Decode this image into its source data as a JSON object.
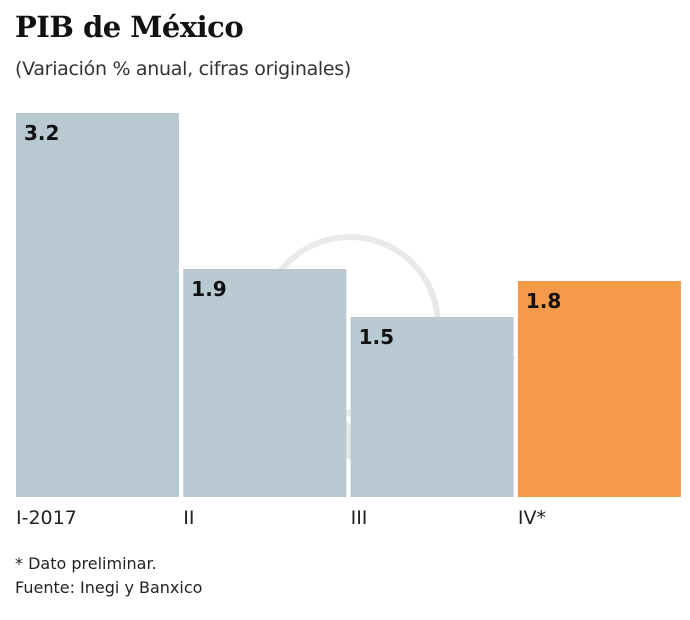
{
  "chart_data": {
    "type": "bar",
    "title": "PIB de México",
    "subtitle": "(Variación % anual, cifras originales)",
    "categories": [
      "I-2017",
      "II",
      "III",
      "IV*"
    ],
    "values": [
      3.2,
      1.9,
      1.5,
      1.8
    ],
    "value_labels": [
      "3.2",
      "1.9",
      "1.5",
      "1.8"
    ],
    "ylim": [
      0,
      3.2
    ],
    "grid": false,
    "colors": [
      "#b8c9d2",
      "#b8c9d2",
      "#b8c9d2",
      "#f59a48"
    ],
    "xlabel": "",
    "ylabel": ""
  },
  "notes": {
    "footnote": "* Dato preliminar.",
    "source": "Fuente: Inegi y Banxico"
  }
}
